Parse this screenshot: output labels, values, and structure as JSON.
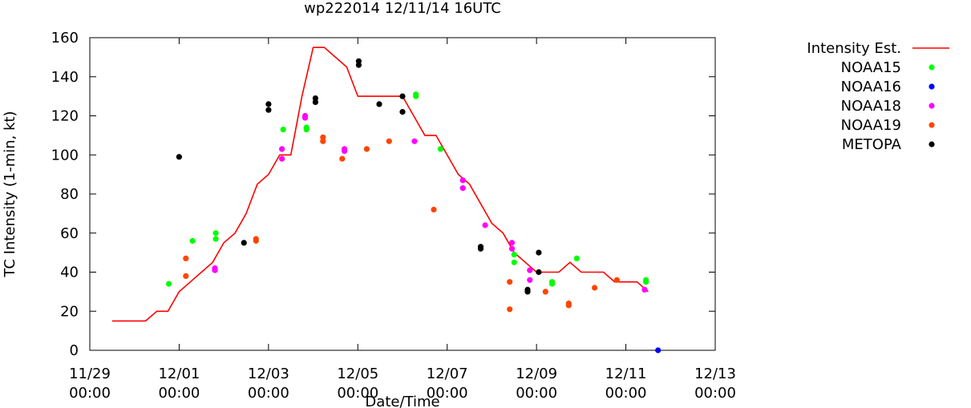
{
  "chart_data": {
    "type": "scatter",
    "title": "wp222014 12/11/14 16UTC",
    "xlabel": "Date/Time",
    "ylabel": "TC Intensity (1-min, kt)",
    "x_unit": "days since 11/29 00:00",
    "xlim": [
      0,
      14
    ],
    "ylim": [
      0,
      160
    ],
    "yticks": [
      0,
      20,
      40,
      60,
      80,
      100,
      120,
      140,
      160
    ],
    "xticks": [
      {
        "x": 0,
        "date": "11/29",
        "time": "00:00"
      },
      {
        "x": 2,
        "date": "12/01",
        "time": "00:00"
      },
      {
        "x": 4,
        "date": "12/03",
        "time": "00:00"
      },
      {
        "x": 6,
        "date": "12/05",
        "time": "00:00"
      },
      {
        "x": 8,
        "date": "12/07",
        "time": "00:00"
      },
      {
        "x": 10,
        "date": "12/09",
        "time": "00:00"
      },
      {
        "x": 12,
        "date": "12/11",
        "time": "00:00"
      },
      {
        "x": 14,
        "date": "12/13",
        "time": "00:00"
      }
    ],
    "series": [
      {
        "name": "Intensity Est.",
        "kind": "line",
        "color": "#ff0000",
        "points": [
          [
            0.5,
            15
          ],
          [
            1.25,
            15
          ],
          [
            1.5,
            20
          ],
          [
            1.75,
            20
          ],
          [
            2.0,
            30
          ],
          [
            2.25,
            35
          ],
          [
            2.5,
            40
          ],
          [
            2.75,
            45
          ],
          [
            3.0,
            55
          ],
          [
            3.25,
            60
          ],
          [
            3.5,
            70
          ],
          [
            3.75,
            85
          ],
          [
            4.0,
            90
          ],
          [
            4.25,
            100
          ],
          [
            4.5,
            100
          ],
          [
            4.75,
            130
          ],
          [
            5.0,
            155
          ],
          [
            5.25,
            155
          ],
          [
            5.5,
            150
          ],
          [
            5.75,
            145
          ],
          [
            6.0,
            130
          ],
          [
            6.25,
            130
          ],
          [
            6.5,
            130
          ],
          [
            6.75,
            130
          ],
          [
            7.0,
            130
          ],
          [
            7.25,
            120
          ],
          [
            7.5,
            110
          ],
          [
            7.75,
            110
          ],
          [
            8.0,
            100
          ],
          [
            8.25,
            90
          ],
          [
            8.5,
            85
          ],
          [
            8.75,
            75
          ],
          [
            9.0,
            65
          ],
          [
            9.25,
            60
          ],
          [
            9.5,
            50
          ],
          [
            9.75,
            45
          ],
          [
            10.0,
            40
          ],
          [
            10.25,
            40
          ],
          [
            10.5,
            40
          ],
          [
            10.75,
            45
          ],
          [
            11.0,
            40
          ],
          [
            11.25,
            40
          ],
          [
            11.5,
            40
          ],
          [
            11.75,
            35
          ],
          [
            12.0,
            35
          ],
          [
            12.25,
            35
          ],
          [
            12.5,
            30
          ]
        ]
      },
      {
        "name": "NOAA15",
        "kind": "points",
        "color": "#00ff00",
        "points": [
          [
            1.77,
            34
          ],
          [
            2.3,
            56
          ],
          [
            2.82,
            60
          ],
          [
            2.82,
            57
          ],
          [
            4.33,
            113
          ],
          [
            4.85,
            114
          ],
          [
            4.85,
            113
          ],
          [
            7.3,
            131
          ],
          [
            7.3,
            130
          ],
          [
            7.85,
            103
          ],
          [
            9.5,
            49
          ],
          [
            9.5,
            45
          ],
          [
            10.35,
            35
          ],
          [
            10.35,
            34
          ],
          [
            10.9,
            47
          ],
          [
            12.45,
            36
          ],
          [
            12.45,
            35
          ]
        ]
      },
      {
        "name": "NOAA16",
        "kind": "points",
        "color": "#0000ff",
        "points": [
          [
            12.72,
            0
          ]
        ]
      },
      {
        "name": "NOAA18",
        "kind": "points",
        "color": "#ff00ff",
        "points": [
          [
            2.8,
            42
          ],
          [
            2.8,
            41
          ],
          [
            4.3,
            103
          ],
          [
            4.3,
            98
          ],
          [
            4.82,
            120
          ],
          [
            4.82,
            119
          ],
          [
            5.7,
            103
          ],
          [
            5.7,
            102
          ],
          [
            7.27,
            107
          ],
          [
            8.35,
            87
          ],
          [
            8.35,
            83
          ],
          [
            8.85,
            64
          ],
          [
            9.45,
            55
          ],
          [
            9.45,
            52
          ],
          [
            9.85,
            41
          ],
          [
            9.85,
            36
          ],
          [
            12.42,
            31
          ]
        ]
      },
      {
        "name": "NOAA19",
        "kind": "points",
        "color": "#ff4500",
        "points": [
          [
            2.15,
            47
          ],
          [
            2.15,
            38
          ],
          [
            3.72,
            57
          ],
          [
            3.72,
            56
          ],
          [
            5.22,
            109
          ],
          [
            5.22,
            107
          ],
          [
            5.65,
            98
          ],
          [
            6.2,
            103
          ],
          [
            6.7,
            107
          ],
          [
            7.7,
            72
          ],
          [
            9.4,
            35
          ],
          [
            9.4,
            21
          ],
          [
            10.2,
            30
          ],
          [
            10.72,
            24
          ],
          [
            10.72,
            23
          ],
          [
            11.3,
            32
          ],
          [
            11.8,
            36
          ]
        ]
      },
      {
        "name": "METOPA",
        "kind": "points",
        "color": "#000000",
        "points": [
          [
            2.0,
            99
          ],
          [
            3.45,
            55
          ],
          [
            4.0,
            126
          ],
          [
            4.0,
            123
          ],
          [
            5.05,
            129
          ],
          [
            5.05,
            127
          ],
          [
            6.02,
            148
          ],
          [
            6.02,
            146
          ],
          [
            6.48,
            126
          ],
          [
            7.0,
            130
          ],
          [
            7.0,
            122
          ],
          [
            8.75,
            53
          ],
          [
            8.75,
            52
          ],
          [
            9.8,
            31
          ],
          [
            9.8,
            30
          ],
          [
            10.05,
            50
          ],
          [
            10.05,
            40
          ]
        ]
      }
    ],
    "legend": {
      "placement": "right"
    }
  }
}
